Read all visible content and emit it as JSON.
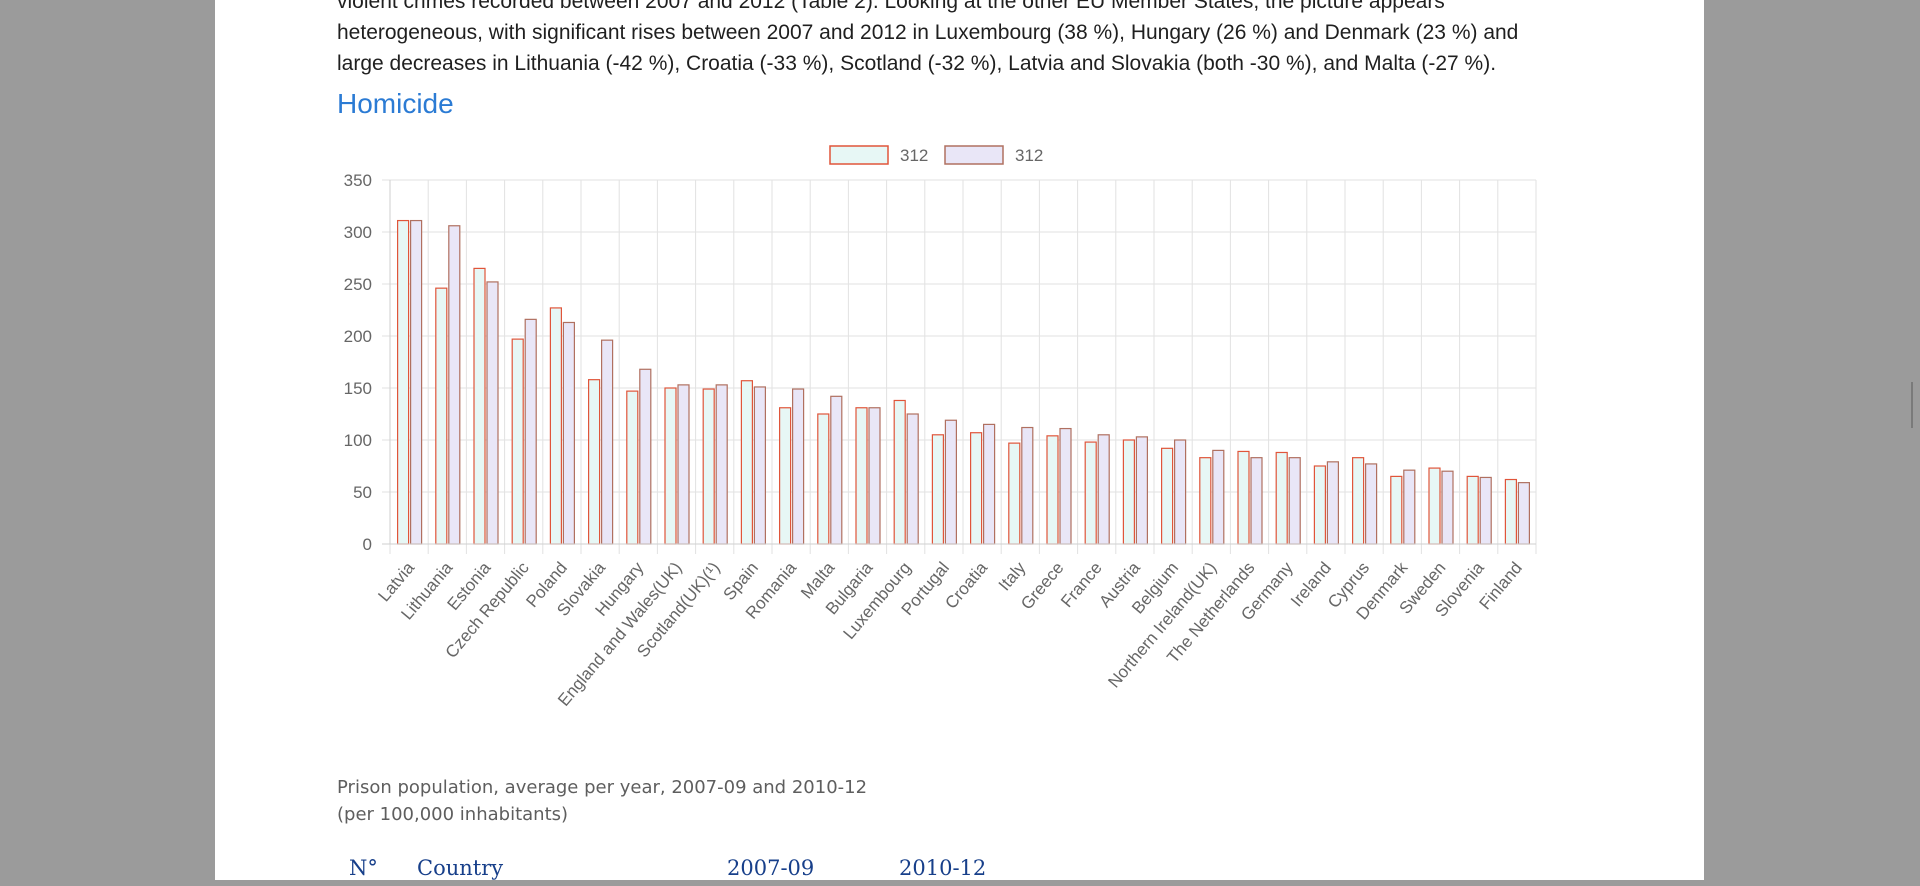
{
  "intro_lines": [
    "violent crimes recorded between 2007 and 2012 (Table 2). Looking at the other EU Member States, the picture appears",
    "heterogeneous, with significant rises between 2007 and 2012 in Luxembourg (38 %), Hungary (26 %) and Denmark (23 %) and",
    "large decreases in Lithuania (-42 %), Croatia (-33 %), Scotland (-32 %), Latvia and Slovakia (both -30 %), and Malta (-27 %)."
  ],
  "section_title": "Homicide",
  "chart_data": {
    "type": "bar",
    "categories": [
      "Latvia",
      "Lithuania",
      "Estonia",
      "Czech Republic",
      "Poland",
      "Slovakia",
      "Hungary",
      "England and Wales(UK)",
      "Scotland(UK)(¹)",
      "Spain",
      "Romania",
      "Malta",
      "Bulgaria",
      "Luxembourg",
      "Portugal",
      "Croatia",
      "Italy",
      "Greece",
      "France",
      "Austria",
      "Belgium",
      "Northern Ireland(UK)",
      "The Netherlands",
      "Germany",
      "Ireland",
      "Cyprus",
      "Denmark",
      "Sweden",
      "Slovenia",
      "Finland"
    ],
    "series": [
      {
        "name": "312",
        "fill": "#e7f7f5",
        "stroke": "#e0553a",
        "values": [
          311,
          246,
          265,
          197,
          227,
          158,
          147,
          150,
          149,
          157,
          131,
          125,
          131,
          138,
          105,
          107,
          97,
          104,
          98,
          100,
          92,
          83,
          89,
          88,
          75,
          83,
          65,
          73,
          65,
          62
        ]
      },
      {
        "name": "312",
        "fill": "#e9e6f7",
        "stroke": "#b07060",
        "values": [
          311,
          306,
          252,
          216,
          213,
          196,
          168,
          153,
          153,
          151,
          149,
          142,
          131,
          125,
          119,
          115,
          112,
          111,
          105,
          103,
          100,
          90,
          83,
          83,
          79,
          77,
          71,
          70,
          64,
          59
        ]
      }
    ],
    "yticks": [
      "0",
      "50",
      "100",
      "150",
      "200",
      "250",
      "300",
      "350"
    ],
    "ylim": [
      0,
      350
    ],
    "grid": true,
    "legend_position": "top-center"
  },
  "caption": {
    "line1": "Prison population, average per year, 2007-09 and 2010-12",
    "line2": "(per 100,000 inhabitants)"
  },
  "table_header": {
    "no": "N°",
    "country": "Country",
    "col1": "2007-09",
    "col2": "2010-12"
  }
}
